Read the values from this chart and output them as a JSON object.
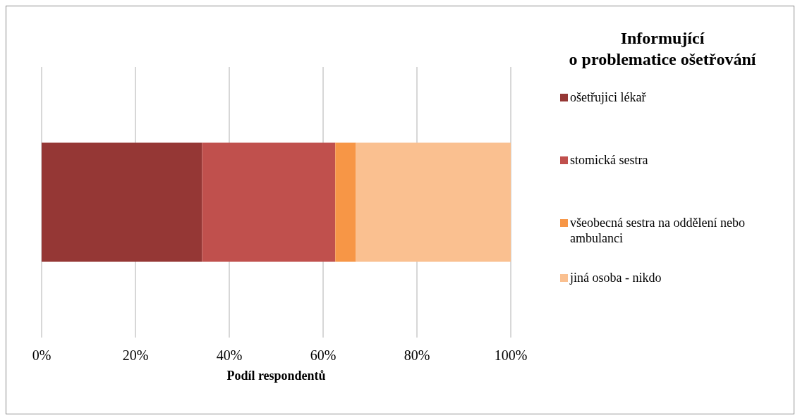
{
  "chart_data": {
    "type": "bar",
    "orientation": "horizontal",
    "stacked": true,
    "categories": [
      null
    ],
    "series": [
      {
        "name": "ošetřujici lékař",
        "color": "#953735",
        "values": [
          34.2
        ]
      },
      {
        "name": "stomická sestra",
        "color": "#c0504d",
        "values": [
          28.4
        ]
      },
      {
        "name": "všeobecná sestra na oddělení nebo ambulanci",
        "color": "#f79646",
        "values": [
          4.4
        ]
      },
      {
        "name": "jiná osoba - nikdo",
        "color": "#fac090",
        "values": [
          33.0
        ]
      }
    ],
    "xlabel": "Podíl respondentů",
    "legend_title": "Informující o problematice ošetřování",
    "xlim": [
      0,
      100
    ],
    "xticks": [
      {
        "value": 0,
        "label": "0%"
      },
      {
        "value": 20,
        "label": "20%"
      },
      {
        "value": 40,
        "label": "40%"
      },
      {
        "value": 60,
        "label": "60%"
      },
      {
        "value": 80,
        "label": "80%"
      },
      {
        "value": 100,
        "label": "100%"
      }
    ],
    "grid": "x",
    "legend": "right"
  }
}
